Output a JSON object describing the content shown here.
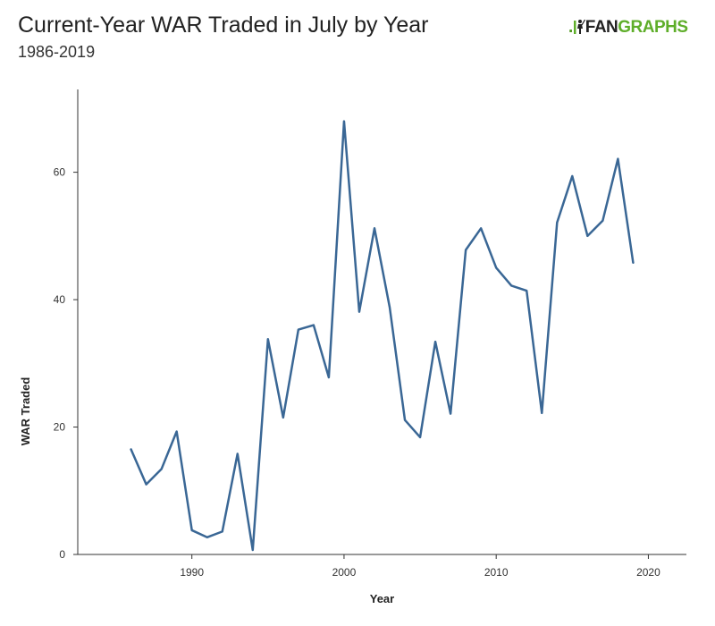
{
  "header": {
    "title": "Current-Year WAR Traded in July by Year",
    "subtitle": "1986-2019"
  },
  "logo": {
    "prefix": ".",
    "fan": "FAN",
    "graphs": "GRAPHS",
    "icon": "batter-icon"
  },
  "colors": {
    "line": "#3a6795",
    "axis": "#333333",
    "logo_green": "#5fae2a"
  },
  "chart_data": {
    "type": "line",
    "title": "Current-Year WAR Traded in July by Year",
    "subtitle": "1986-2019",
    "xlabel": "Year",
    "ylabel": "WAR Traded",
    "xlim": [
      1982.5,
      2022.5
    ],
    "ylim": [
      0,
      73
    ],
    "xticks": [
      1990,
      2000,
      2010,
      2020
    ],
    "yticks": [
      0,
      20,
      40,
      60
    ],
    "grid": false,
    "series": [
      {
        "x": [
          1986,
          1987,
          1988,
          1989,
          1990,
          1991,
          1992,
          1993,
          1994,
          1995,
          1996,
          1997,
          1998,
          1999,
          2000,
          2001,
          2002,
          2003,
          2004,
          2005,
          2006,
          2007,
          2008,
          2009,
          2010,
          2011,
          2012,
          2013,
          2014,
          2015,
          2016,
          2017,
          2018,
          2019
        ],
        "values": [
          16.5,
          11.0,
          13.4,
          19.3,
          3.8,
          2.7,
          3.6,
          15.8,
          0.7,
          33.8,
          21.5,
          35.3,
          36.0,
          27.8,
          68.0,
          38.1,
          51.2,
          38.8,
          21.1,
          18.4,
          33.4,
          22.1,
          47.8,
          51.2,
          45.0,
          42.2,
          41.4,
          22.2,
          52.1,
          59.4,
          50.0,
          52.4,
          62.1,
          45.8
        ]
      }
    ]
  }
}
